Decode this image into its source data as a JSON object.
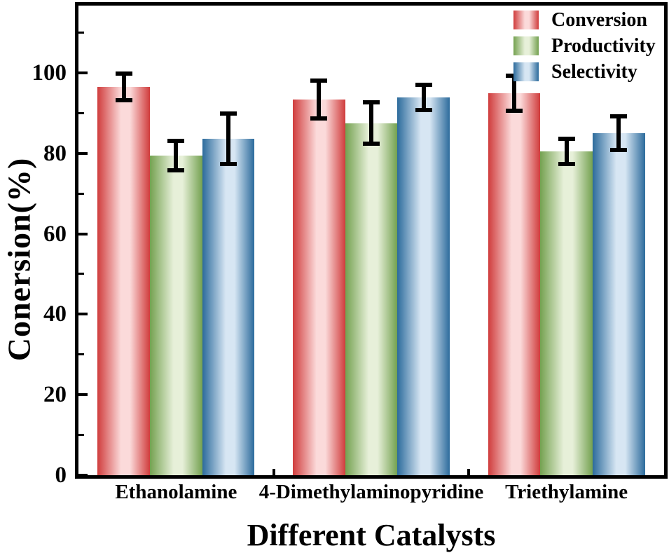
{
  "figure": {
    "background": "#ffffff",
    "axis_color": "#000000"
  },
  "chart_data": {
    "type": "bar",
    "title": "",
    "xlabel": "Different Catalysts",
    "ylabel": "Conersion(%)",
    "categories": [
      "Ethanolamine",
      "4-Dimethylaminopyridine",
      "Triethylamine"
    ],
    "series": [
      {
        "name": "Conversion",
        "edge_color": "#d03c3c",
        "center_color": "#fbdada",
        "values": [
          96.5,
          93.4,
          94.9
        ],
        "errors": [
          3.3,
          4.7,
          4.3
        ]
      },
      {
        "name": "Productivity",
        "edge_color": "#74a150",
        "center_color": "#e7f0d9",
        "values": [
          79.4,
          87.5,
          80.5
        ],
        "errors": [
          3.7,
          5.2,
          3.1
        ]
      },
      {
        "name": "Selectivity",
        "edge_color": "#2c6b9c",
        "center_color": "#d7e6f3",
        "values": [
          83.6,
          93.9,
          85.0
        ],
        "errors": [
          6.3,
          3.2,
          4.2
        ]
      }
    ],
    "ylim": [
      0,
      116.7
    ],
    "yticks": [
      0,
      20,
      40,
      60,
      80,
      100
    ],
    "minor_yticks": [
      10,
      30,
      50,
      70,
      90,
      110
    ],
    "grid": false,
    "legend_position": "top-right-inside",
    "error_bar_color": "#000000"
  }
}
